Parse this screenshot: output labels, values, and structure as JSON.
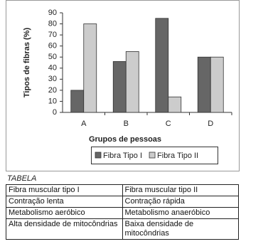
{
  "chart_data": {
    "type": "bar",
    "xlabel": "Grupos de pessoas",
    "ylabel": "Tipos de fibras (%)",
    "categories": [
      "A",
      "B",
      "C",
      "D"
    ],
    "series": [
      {
        "name": "Fibra Tipo I",
        "color": "#666666",
        "values": [
          20,
          46,
          85,
          50
        ]
      },
      {
        "name": "Fibra Tipo II",
        "color": "#cccccc",
        "values": [
          80,
          55,
          14,
          50
        ]
      }
    ],
    "ylim": [
      0,
      90
    ],
    "yticks": [
      0,
      10,
      20,
      30,
      40,
      50,
      60,
      70,
      80,
      90
    ],
    "grid": false
  },
  "table": {
    "title": "TABELA",
    "rows": [
      [
        "Fibra muscular tipo I",
        "Fibra muscular tipo II"
      ],
      [
        "Contração lenta",
        "Contração rápida"
      ],
      [
        "Metabolismo aeróbico",
        "Metabolismo anaeróbico"
      ],
      [
        "Alta densidade de mitocôndrias",
        "Baixa densidade de mitocôndrias"
      ]
    ]
  }
}
